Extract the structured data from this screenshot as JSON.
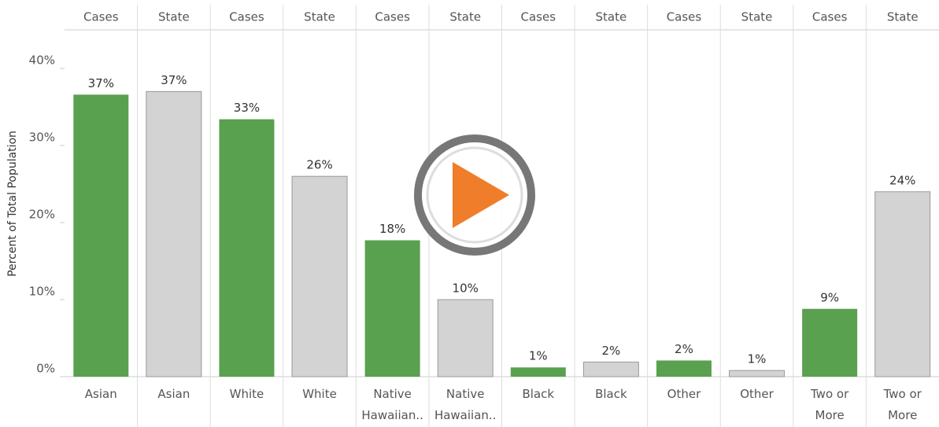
{
  "chart_data": {
    "type": "bar",
    "y_axis_label": "Percent of Total Population",
    "column_headers": [
      "Cases",
      "State",
      "Cases",
      "State",
      "Cases",
      "State",
      "Cases",
      "State",
      "Cases",
      "State",
      "Cases",
      "State"
    ],
    "categories": [
      "Asian",
      "Asian",
      "White",
      "White",
      "Native Hawaiian..",
      "Native Hawaiian..",
      "Black",
      "Black",
      "Other",
      "Other",
      "Two or More",
      "Two or More"
    ],
    "values": [
      36.6,
      37.0,
      33.4,
      26.0,
      17.7,
      10.0,
      1.2,
      1.9,
      2.1,
      0.8,
      8.8,
      24.0
    ],
    "value_labels": [
      "37%",
      "37%",
      "33%",
      "26%",
      "18%",
      "10%",
      "1%",
      "2%",
      "2%",
      "1%",
      "9%",
      "24%"
    ],
    "colors": [
      "#59a14f",
      "#d3d3d3",
      "#59a14f",
      "#d3d3d3",
      "#59a14f",
      "#d3d3d3",
      "#59a14f",
      "#d3d3d3",
      "#59a14f",
      "#d3d3d3",
      "#59a14f",
      "#d3d3d3"
    ],
    "ylim": [
      0,
      45
    ],
    "yticks": [
      {
        "value": 0,
        "label": "0%"
      },
      {
        "value": 10,
        "label": "10%"
      },
      {
        "value": 20,
        "label": "20%"
      },
      {
        "value": 30,
        "label": "30%"
      },
      {
        "value": 40,
        "label": "40%"
      }
    ]
  }
}
